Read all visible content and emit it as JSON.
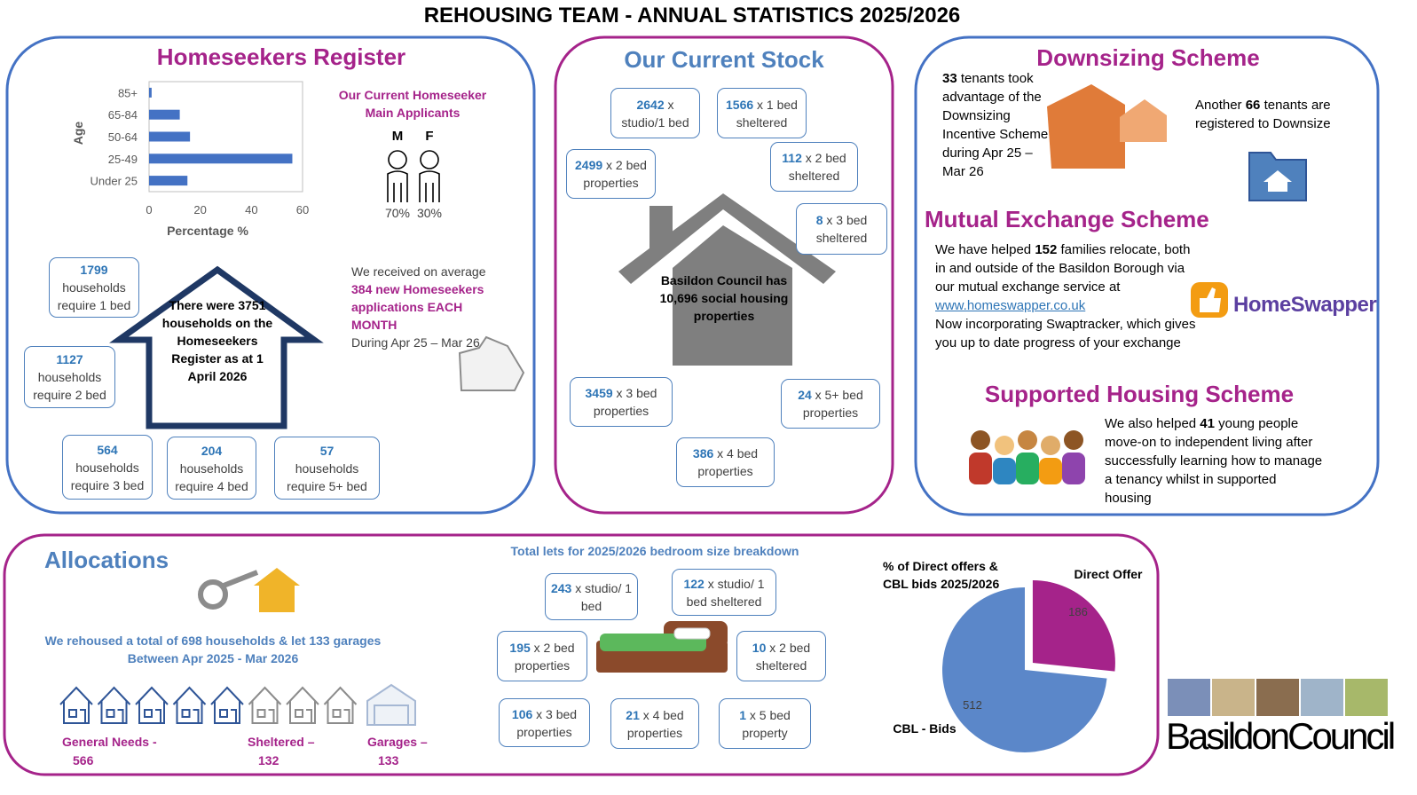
{
  "title": "REHOUSING TEAM - ANNUAL STATISTICS 2025/2026",
  "homeseekers": {
    "heading": "Homeseekers Register",
    "applicants": {
      "title": "Our Current Homeseeker Main Applicants",
      "genders": [
        "M",
        "F"
      ],
      "shares": [
        "70%",
        "30%"
      ]
    },
    "register": "There were 3751 households on the Homeseekers Register as at 1 April 2026",
    "need_boxes": [
      {
        "count": "1799",
        "text": "households require 1 bed"
      },
      {
        "count": "1127",
        "text": "households require 2 bed"
      },
      {
        "count": "564",
        "text": "households require 3 bed"
      },
      {
        "count": "204",
        "text": "households require 4 bed"
      },
      {
        "count": "57",
        "text": "households require 5+ bed"
      }
    ],
    "applications": {
      "pre": "We received on average",
      "highlight": "384 new Homeseekers applications EACH MONTH",
      "post": "During Apr 25 – Mar 26"
    }
  },
  "stock": {
    "heading": "Our Current Stock",
    "total": "Basildon Council has 10,696 social housing properties",
    "boxes": [
      {
        "count": "2642",
        "text": "x studio/1 bed"
      },
      {
        "count": "1566",
        "text": "x 1 bed sheltered"
      },
      {
        "count": "2499",
        "text": "x 2 bed properties"
      },
      {
        "count": "112",
        "text": "x 2 bed sheltered"
      },
      {
        "count": "8",
        "text": "x 3 bed sheltered"
      },
      {
        "count": "3459",
        "text": "x 3 bed properties"
      },
      {
        "count": "24",
        "text": "x 5+ bed properties"
      },
      {
        "count": "386",
        "text": "x 4 bed properties"
      }
    ]
  },
  "downsizing": {
    "heading": "Downsizing Scheme",
    "took": {
      "count": "33",
      "text": "tenants took advantage of the Downsizing Incentive Scheme during Apr 25 – Mar 26"
    },
    "registered": {
      "pre": "Another",
      "count": "66",
      "post": "tenants are registered to Downsize"
    }
  },
  "mutual_exchange": {
    "heading": "Mutual Exchange Scheme",
    "pre": "We have helped",
    "count": "152",
    "mid": "families relocate, both in and outside of the Basildon Borough via our mutual exchange service at",
    "link": "www.homeswapper.co.uk",
    "post": "Now incorporating Swaptracker, which gives you up to date progress of your exchange",
    "logo": "HomeSwapper"
  },
  "supported_housing": {
    "heading": "Supported Housing Scheme",
    "pre": "We also helped",
    "count": "41",
    "post": "young people move-on to independent living after successfully learning how to manage a tenancy whilst in supported housing"
  },
  "allocations": {
    "heading": "Allocations",
    "summary": "We rehoused a total of 698 households & let 133 garages",
    "period": "Between Apr 2025 - Mar 2026",
    "groups": [
      {
        "label": "General Needs -",
        "count": "566"
      },
      {
        "label": "Sheltered –",
        "count": "132"
      },
      {
        "label": "Garages –",
        "count": "133"
      }
    ],
    "breakdown_title": "Total lets for 2025/2026 bedroom size breakdown",
    "boxes": [
      {
        "count": "243",
        "text": "x studio/ 1 bed"
      },
      {
        "count": "122",
        "text": "x studio/ 1 bed sheltered"
      },
      {
        "count": "195",
        "text": "x 2 bed properties"
      },
      {
        "count": "10",
        "text": "x 2 bed sheltered"
      },
      {
        "count": "106",
        "text": "x 3 bed properties"
      },
      {
        "count": "21",
        "text": "x 4 bed properties"
      },
      {
        "count": "1",
        "text": "x 5 bed property"
      }
    ]
  },
  "logo": {
    "name": "BasildonCouncil"
  },
  "chart_data": [
    {
      "type": "bar",
      "orientation": "horizontal",
      "y_label": "Age",
      "x_label": "Percentage %",
      "categories": [
        "85+",
        "65-84",
        "50-64",
        "25-49",
        "Under 25"
      ],
      "values": [
        1,
        12,
        16,
        56,
        15
      ],
      "color": "#4472c4",
      "xlim": [
        0,
        60
      ],
      "xticks": [
        0,
        20,
        40,
        60
      ]
    },
    {
      "type": "pie",
      "title": "% of Direct offers & CBL bids 2025/2026",
      "categories": [
        "Direct Offer",
        "CBL - Bids"
      ],
      "values": [
        186,
        512
      ],
      "colors": [
        "#a5238a",
        "#5b87c9"
      ]
    }
  ]
}
